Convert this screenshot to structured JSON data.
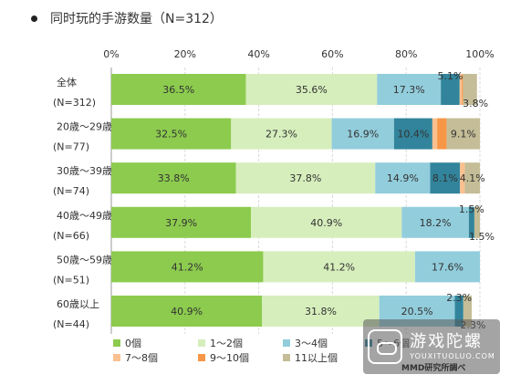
{
  "chart_data": {
    "type": "bar",
    "orientation": "horizontal",
    "stacked": true,
    "title": "同时玩的手游数量（N=312）",
    "categories": [
      "全体",
      "20歳～29歳",
      "30歳～39歳",
      "40歳～49歳",
      "50歳～59歳",
      "60歳以上"
    ],
    "category_sublabels": [
      "(N=312)",
      "(N=77)",
      "(N=74)",
      "(N=66)",
      "(N=51)",
      "(N=44)"
    ],
    "x_ticks": [
      "0%",
      "20%",
      "40%",
      "60%",
      "80%",
      "100%"
    ],
    "xlim": [
      0,
      100
    ],
    "grid": true,
    "legend_position": "bottom",
    "series": [
      {
        "name": "0個",
        "color": "#8ccb4e",
        "values": [
          36.5,
          32.5,
          33.8,
          37.9,
          41.2,
          40.9
        ],
        "labels": [
          "36.5%",
          "32.5%",
          "33.8%",
          "37.9%",
          "41.2%",
          "40.9%"
        ]
      },
      {
        "name": "1～2個",
        "color": "#d6eebc",
        "values": [
          35.6,
          27.3,
          37.8,
          40.9,
          41.2,
          31.8
        ],
        "labels": [
          "35.6%",
          "27.3%",
          "37.8%",
          "40.9%",
          "41.2%",
          "31.8%"
        ]
      },
      {
        "name": "3～4個",
        "color": "#92cddc",
        "values": [
          17.3,
          16.9,
          14.9,
          18.2,
          17.6,
          20.5
        ],
        "labels": [
          "17.3%",
          "16.9%",
          "14.9%",
          "18.2%",
          "17.6%",
          "20.5%"
        ]
      },
      {
        "name": "5～6個",
        "color": "#31849b",
        "values": [
          5.1,
          10.4,
          8.1,
          1.5,
          0,
          2.3
        ],
        "labels": [
          "5.1%",
          "10.4%",
          "8.1%",
          "1.5%",
          "",
          "2.3%"
        ]
      },
      {
        "name": "7～8個",
        "color": "#fac090",
        "values": [
          0.6,
          1.3,
          1.3,
          0,
          0,
          0
        ],
        "labels": [
          "",
          "",
          "",
          "",
          "",
          ""
        ]
      },
      {
        "name": "9～10個",
        "color": "#f79646",
        "values": [
          0.3,
          2.6,
          0,
          0,
          0,
          0
        ],
        "labels": [
          "",
          "",
          "",
          "",
          "",
          ""
        ]
      },
      {
        "name": "11以上個",
        "color": "#c4bd97",
        "values": [
          3.8,
          9.1,
          4.1,
          1.5,
          0,
          2.3
        ],
        "labels": [
          "3.8%",
          "9.1%",
          "4.1%",
          "1.5%",
          "",
          "2.3%"
        ]
      }
    ]
  },
  "watermark": {
    "cn": "游戏陀螺",
    "en": "YOUXITUOLUO.COM"
  },
  "source": "MMD研究所調べ"
}
